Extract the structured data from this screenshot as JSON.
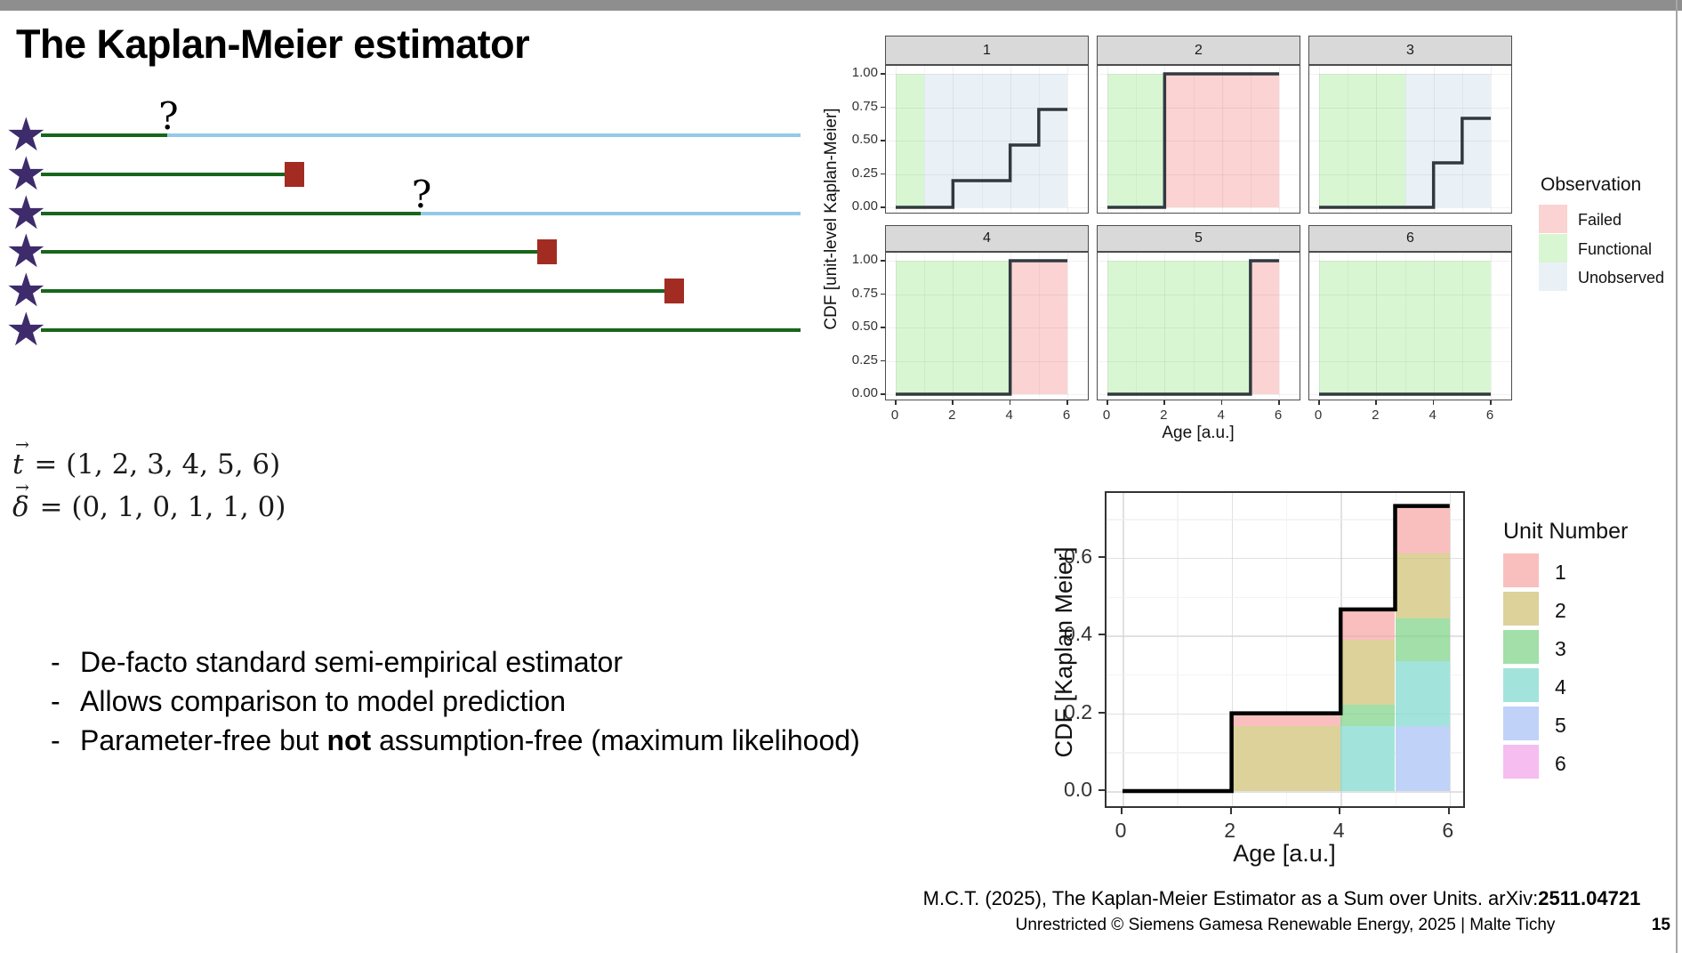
{
  "slide": {
    "title": "The Kaplan-Meier estimator",
    "footer_line1_prefix": "M.C.T. (2025), The Kaplan-Meier Estimator as a Sum over Units. arXiv:",
    "footer_line1_bold": "2511.04721",
    "footer_line2": "Unrestricted © Siemens Gamesa Renewable Energy, 2025 | Malte Tichy",
    "page_number": "15"
  },
  "formulas": {
    "t_lhs": "t",
    "t_rhs": "= (1, 2, 3, 4, 5, 6)",
    "delta_lhs": "δ",
    "delta_rhs": "= (0, 1, 0, 1, 1, 0)"
  },
  "bullets": [
    {
      "parts": [
        {
          "text": "De-facto standard semi-empirical estimator",
          "bold": false
        }
      ]
    },
    {
      "parts": [
        {
          "text": "Allows comparison to model prediction",
          "bold": false
        }
      ]
    },
    {
      "parts": [
        {
          "text": "Parameter-free but ",
          "bold": false
        },
        {
          "text": "not",
          "bold": true
        },
        {
          "text": " assumption-free (maximum likelihood)",
          "bold": false
        }
      ]
    }
  ],
  "timeline": {
    "question_mark": "?",
    "t": [
      1,
      2,
      3,
      4,
      5,
      6
    ],
    "delta": [
      0,
      1,
      0,
      1,
      1,
      0
    ],
    "rows": [
      {
        "unit": 1,
        "t": 1,
        "status": "censored"
      },
      {
        "unit": 2,
        "t": 2,
        "status": "failed"
      },
      {
        "unit": 3,
        "t": 3,
        "status": "censored"
      },
      {
        "unit": 4,
        "t": 4,
        "status": "failed"
      },
      {
        "unit": 5,
        "t": 5,
        "status": "failed"
      },
      {
        "unit": 6,
        "t": 6,
        "status": "running"
      }
    ]
  },
  "colors": {
    "top_bar": "#8E8E8E",
    "star": "#3D2B6B",
    "functional_line": "#17661C",
    "unobserved_line": "#94C9E9",
    "failed_marker": "#A32C22",
    "strip_bg": "#D9D9D9",
    "panel_border": "#4D4D4D",
    "facet_step_line": "#31393F",
    "km_step_line": "#000000",
    "observation_fill": {
      "Failed": "#FAD3D2",
      "Functional": "#D8F6D2",
      "Unobserved": "#E9F1F6"
    },
    "unit_fill": {
      "1": "#F9BFBE",
      "2": "#DCD29A",
      "3": "#A2DFA9",
      "4": "#A2E4DC",
      "5": "#C0D2F7",
      "6": "#F5BDF0"
    }
  },
  "chart_data": [
    {
      "type": "line",
      "subtype": "step-facets",
      "xlabel": "Age [a.u.]",
      "ylabel": "CDF [unit-level Kaplan-Meier]",
      "xticks": [
        0,
        2,
        4,
        6
      ],
      "yticks": [
        {
          "v": 0.0,
          "label": "0.00"
        },
        {
          "v": 0.25,
          "label": "0.25"
        },
        {
          "v": 0.5,
          "label": "0.50"
        },
        {
          "v": 0.75,
          "label": "0.75"
        },
        {
          "v": 1.0,
          "label": "1.00"
        }
      ],
      "xlim": [
        0,
        6
      ],
      "ylim": [
        0,
        1
      ],
      "grid": true,
      "panels": [
        {
          "label": "1",
          "background": [
            {
              "observation": "Functional",
              "from": 0,
              "to": 1
            },
            {
              "observation": "Unobserved",
              "from": 1,
              "to": 6
            }
          ],
          "step": [
            [
              0,
              2,
              0
            ],
            [
              2,
              4,
              0.2
            ],
            [
              4,
              5,
              0.467
            ],
            [
              5,
              6,
              0.733
            ]
          ]
        },
        {
          "label": "2",
          "background": [
            {
              "observation": "Functional",
              "from": 0,
              "to": 2
            },
            {
              "observation": "Failed",
              "from": 2,
              "to": 6
            }
          ],
          "step": [
            [
              0,
              2,
              0
            ],
            [
              2,
              6,
              1.0
            ]
          ]
        },
        {
          "label": "3",
          "background": [
            {
              "observation": "Functional",
              "from": 0,
              "to": 3
            },
            {
              "observation": "Unobserved",
              "from": 3,
              "to": 6
            }
          ],
          "step": [
            [
              0,
              4,
              0
            ],
            [
              4,
              5,
              0.333
            ],
            [
              5,
              6,
              0.667
            ]
          ]
        },
        {
          "label": "4",
          "background": [
            {
              "observation": "Functional",
              "from": 0,
              "to": 4
            },
            {
              "observation": "Failed",
              "from": 4,
              "to": 6
            }
          ],
          "step": [
            [
              0,
              4,
              0
            ],
            [
              4,
              6,
              1.0
            ]
          ]
        },
        {
          "label": "5",
          "background": [
            {
              "observation": "Functional",
              "from": 0,
              "to": 5
            },
            {
              "observation": "Failed",
              "from": 5,
              "to": 6
            }
          ],
          "step": [
            [
              0,
              5,
              0
            ],
            [
              5,
              6,
              1.0
            ]
          ]
        },
        {
          "label": "6",
          "background": [
            {
              "observation": "Functional",
              "from": 0,
              "to": 6
            }
          ],
          "step": [
            [
              0,
              6,
              0
            ]
          ]
        }
      ],
      "legend": {
        "title": "Observation",
        "position": "right",
        "entries": [
          {
            "label": "Failed",
            "color": "#FAD3D2"
          },
          {
            "label": "Functional",
            "color": "#D8F6D2"
          },
          {
            "label": "Unobserved",
            "color": "#E9F1F6"
          }
        ]
      }
    },
    {
      "type": "area",
      "subtype": "stacked-step",
      "xlabel": "Age [a.u.]",
      "ylabel": "CDF [Kaplan Meier]",
      "xticks": [
        0,
        2,
        4,
        6
      ],
      "yticks": [
        {
          "v": 0.0,
          "label": "0.0"
        },
        {
          "v": 0.2,
          "label": "0.2"
        },
        {
          "v": 0.4,
          "label": "0.4"
        },
        {
          "v": 0.6,
          "label": "0.6"
        }
      ],
      "xlim": [
        0,
        6
      ],
      "ylim": [
        0,
        0.77
      ],
      "grid": true,
      "km_step": [
        [
          0,
          2,
          0
        ],
        [
          2,
          4,
          0.2
        ],
        [
          4,
          5,
          0.467
        ],
        [
          5,
          6,
          0.733
        ]
      ],
      "segments": [
        {
          "x0": 2,
          "x1": 4,
          "stack": [
            {
              "unit": "2",
              "from": 0,
              "to": 0.167
            },
            {
              "unit": "1",
              "from": 0.167,
              "to": 0.2
            }
          ]
        },
        {
          "x0": 4,
          "x1": 5,
          "stack": [
            {
              "unit": "4",
              "from": 0,
              "to": 0.167
            },
            {
              "unit": "3",
              "from": 0.167,
              "to": 0.222
            },
            {
              "unit": "2",
              "from": 0.222,
              "to": 0.389
            },
            {
              "unit": "1",
              "from": 0.389,
              "to": 0.467
            }
          ]
        },
        {
          "x0": 5,
          "x1": 6,
          "stack": [
            {
              "unit": "5",
              "from": 0,
              "to": 0.167
            },
            {
              "unit": "4",
              "from": 0.167,
              "to": 0.333
            },
            {
              "unit": "3",
              "from": 0.333,
              "to": 0.444
            },
            {
              "unit": "2",
              "from": 0.444,
              "to": 0.611
            },
            {
              "unit": "1",
              "from": 0.611,
              "to": 0.733
            }
          ]
        }
      ],
      "legend": {
        "title": "Unit Number",
        "position": "right",
        "entries": [
          {
            "label": "1",
            "color": "#F9BFBE"
          },
          {
            "label": "2",
            "color": "#DCD29A"
          },
          {
            "label": "3",
            "color": "#A2DFA9"
          },
          {
            "label": "4",
            "color": "#A2E4DC"
          },
          {
            "label": "5",
            "color": "#C0D2F7"
          },
          {
            "label": "6",
            "color": "#F5BDF0"
          }
        ]
      }
    }
  ]
}
